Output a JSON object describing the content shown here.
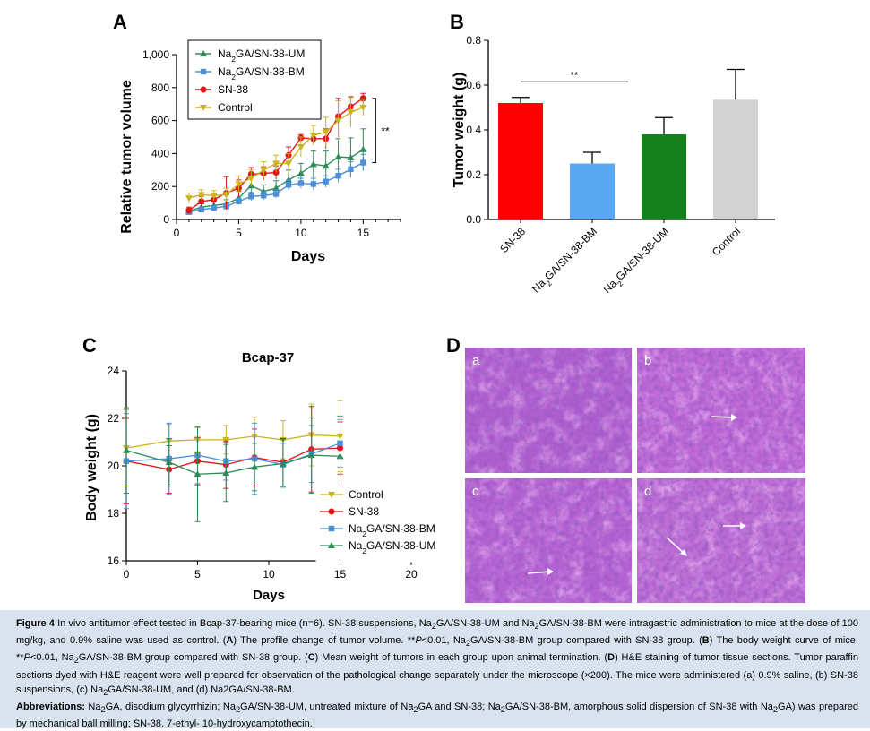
{
  "panelA": {
    "letter": "A",
    "ylabel": "Relative tumor volume",
    "xlabel": "Days",
    "yticks": [
      "0",
      "200",
      "400",
      "600",
      "800",
      "1,000"
    ],
    "xticks": [
      "0",
      "5",
      "10",
      "15"
    ],
    "significance": "**",
    "legend": [
      {
        "label_main": "Na",
        "label_sub": "2",
        "label_rest": "GA/SN-38-UM"
      },
      {
        "label_main": "Na",
        "label_sub": "2",
        "label_rest": "GA/SN-38-BM"
      },
      {
        "label_main": "SN-38",
        "label_sub": "",
        "label_rest": ""
      },
      {
        "label_main": "Control",
        "label_sub": "",
        "label_rest": ""
      }
    ]
  },
  "panelB": {
    "letter": "B",
    "ylabel": "Tumor weight (g)",
    "yticks": [
      "0.0",
      "0.2",
      "0.4",
      "0.6",
      "0.8"
    ],
    "significance": "**",
    "categories": [
      {
        "main": "SN-38",
        "sub": "",
        "rest": ""
      },
      {
        "main": "Na",
        "sub": "2",
        "rest": "GA/SN-38-BM"
      },
      {
        "main": "Na",
        "sub": "2",
        "rest": "GA/SN-38-UM"
      },
      {
        "main": "Control",
        "sub": "",
        "rest": ""
      }
    ]
  },
  "panelC": {
    "letter": "C",
    "title": "Bcap-37",
    "ylabel": "Body weight (g)",
    "xlabel": "Days",
    "yticks": [
      "16",
      "18",
      "20",
      "22",
      "24"
    ],
    "xticks": [
      "0",
      "5",
      "10",
      "15",
      "20"
    ],
    "legend": [
      {
        "label_main": "Control",
        "label_sub": "",
        "label_rest": ""
      },
      {
        "label_main": "SN-38",
        "label_sub": "",
        "label_rest": ""
      },
      {
        "label_main": "Na",
        "label_sub": "2",
        "label_rest": "GA/SN-38-BM"
      },
      {
        "label_main": "Na",
        "label_sub": "2",
        "label_rest": "GA/SN-38-UM"
      }
    ]
  },
  "panelD": {
    "letter": "D",
    "labels": [
      "a",
      "b",
      "c",
      "d"
    ]
  },
  "colors": {
    "um": "#2e8b57",
    "bm": "#4a90d9",
    "sn38": "#e0161b",
    "control": "#c8b41e",
    "bar_sn38": "#ff0000",
    "bar_bm": "#5aa7f2",
    "bar_um": "#14801e",
    "bar_control": "#d3d3d3",
    "caption_bg": "#d9e3ef"
  },
  "chart_data": [
    {
      "type": "line",
      "title": "",
      "xlabel": "Days",
      "ylabel": "Relative tumor volume",
      "xlim": [
        0,
        18
      ],
      "ylim": [
        0,
        1000
      ],
      "x": [
        1,
        2,
        3,
        4,
        5,
        6,
        7,
        8,
        9,
        10,
        11,
        12,
        13,
        14,
        15
      ],
      "series": [
        {
          "name": "Na2GA/SN-38-UM",
          "values": [
            50,
            75,
            85,
            95,
            130,
            205,
            170,
            190,
            240,
            280,
            335,
            325,
            380,
            375,
            425
          ],
          "errors": [
            15,
            20,
            20,
            25,
            40,
            60,
            40,
            45,
            60,
            60,
            80,
            90,
            110,
            120,
            125
          ]
        },
        {
          "name": "Na2GA/SN-38-BM",
          "values": [
            45,
            60,
            70,
            80,
            110,
            140,
            145,
            155,
            210,
            220,
            215,
            230,
            265,
            305,
            345
          ],
          "errors": [
            10,
            15,
            15,
            15,
            20,
            25,
            25,
            25,
            30,
            30,
            35,
            35,
            40,
            45,
            50
          ]
        },
        {
          "name": "SN-38",
          "values": [
            55,
            110,
            120,
            160,
            190,
            275,
            280,
            285,
            390,
            495,
            490,
            490,
            625,
            685,
            735
          ],
          "errors": [
            20,
            30,
            30,
            100,
            50,
            40,
            40,
            40,
            50,
            20,
            30,
            60,
            110,
            60,
            30
          ]
        },
        {
          "name": "Control",
          "values": [
            130,
            150,
            145,
            150,
            215,
            250,
            300,
            340,
            340,
            440,
            510,
            530,
            600,
            650,
            680
          ],
          "errors": [
            30,
            30,
            30,
            40,
            50,
            50,
            50,
            50,
            60,
            60,
            60,
            90,
            120,
            90,
            50
          ]
        }
      ],
      "annotation": "**"
    },
    {
      "type": "bar",
      "title": "",
      "xlabel": "",
      "ylabel": "Tumor weight (g)",
      "ylim": [
        0,
        0.8
      ],
      "categories": [
        "SN-38",
        "Na2GA/SN-38-BM",
        "Na2GA/SN-38-UM",
        "Control"
      ],
      "values": [
        0.52,
        0.25,
        0.38,
        0.535
      ],
      "errors": [
        0.025,
        0.05,
        0.075,
        0.135
      ],
      "annotation": "**"
    },
    {
      "type": "line",
      "title": "Bcap-37",
      "xlabel": "Days",
      "ylabel": "Body weight (g)",
      "xlim": [
        0,
        20
      ],
      "ylim": [
        16,
        24
      ],
      "series": [
        {
          "name": "Control",
          "x": [
            0,
            3,
            5,
            7,
            9,
            11,
            13,
            15
          ],
          "values": [
            20.75,
            21.05,
            21.1,
            21.1,
            21.25,
            21.1,
            21.3,
            21.25
          ],
          "errors": [
            1.6,
            0.7,
            0.5,
            0.6,
            0.8,
            0.8,
            1.3,
            1.5
          ]
        },
        {
          "name": "SN-38",
          "x": [
            0,
            3,
            5,
            7,
            9,
            11,
            13,
            15
          ],
          "values": [
            20.2,
            19.85,
            20.2,
            20.05,
            20.35,
            20.15,
            20.7,
            20.75
          ],
          "errors": [
            1.8,
            1.0,
            1.0,
            1.0,
            1.2,
            1.0,
            1.8,
            1.1
          ]
        },
        {
          "name": "Na2GA/SN-38-BM",
          "x": [
            0,
            3,
            5,
            7,
            9,
            11,
            13,
            15
          ],
          "values": [
            20.2,
            20.3,
            20.45,
            20.2,
            20.3,
            20.05,
            20.5,
            20.95
          ],
          "errors": [
            2.0,
            1.5,
            1.2,
            0.8,
            1.5,
            0.9,
            1.2,
            1.0
          ]
        },
        {
          "name": "Na2GA/SN-38-UM",
          "x": [
            0,
            3,
            5,
            7,
            9,
            11,
            13,
            15
          ],
          "values": [
            20.65,
            20.15,
            19.65,
            19.7,
            19.95,
            20.1,
            20.45,
            20.4
          ],
          "errors": [
            1.8,
            1.0,
            2.0,
            1.2,
            1.0,
            1.0,
            1.6,
            1.7
          ]
        }
      ]
    }
  ],
  "caption": {
    "fig_label": "Figure 4",
    "p1_a": " In vivo antitumor effect tested in Bcap-37-bearing mice (n=6). SN-38 suspensions, Na",
    "p1_b": "GA/SN-38-UM and Na",
    "p1_c": "GA/SN-38-BM were intragastric administration to mice at the dose of 100 mg/kg, and 0.9% saline was used as control. (",
    "A": "A",
    "p2_a": ") The profile change of tumor volume. **",
    "P": "P",
    "p2_b": "<0.01, Na",
    "p2_c": "GA/SN-38-BM group compared with SN-38 group. (",
    "B": "B",
    "p3_a": ") The body weight curve of mice. **",
    "p3_b": "<0.01, Na",
    "p3_c": "GA/SN-38-BM group compared with SN-38 group. (",
    "C": "C",
    "p4_a": ") Mean weight of tumors in each group upon animal termination. (",
    "D": "D",
    "p5_a": ") H&E staining of tumor tissue sections. Tumor paraffin sections dyed with H&E reagent were well prepared for observation of the pathological change separately under the microscope (×200). The mice were administered (a) 0.9% saline, (b) SN-38 suspensions, (c) Na",
    "p5_b": "GA/SN-38-UM, and (d) Na2GA/SN-38-BM.",
    "abbr_label": "Abbreviations:",
    "ab_a": " Na",
    "ab_b": "GA, disodium glycyrrhizin; Na",
    "ab_c": "GA/SN-38-UM, untreated mixture of Na",
    "ab_d": "GA and SN-38; Na",
    "ab_e": "GA/SN-38-BM, amorphous solid dispersion of SN-38 with Na",
    "ab_f": "GA) was prepared by mechanical ball milling; SN-38, 7-ethyl- 10-hydroxycamptothecin.",
    "sub2": "2"
  }
}
